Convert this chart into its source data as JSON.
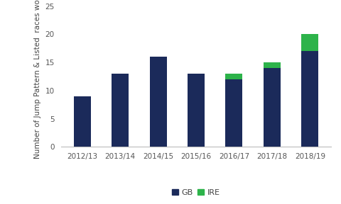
{
  "categories": [
    "2012/13",
    "2013/14",
    "2014/15",
    "2015/16",
    "2016/17",
    "2017/18",
    "2018/19"
  ],
  "gb_values": [
    9,
    13,
    16,
    13,
    12,
    14,
    17
  ],
  "ire_values": [
    0,
    0,
    0,
    0,
    1,
    1,
    3
  ],
  "gb_color": "#1b2a5a",
  "ire_color": "#2db34a",
  "ylabel": "Number of Jump Pattern & Listed  races won",
  "ylim": [
    0,
    25
  ],
  "yticks": [
    0,
    5,
    10,
    15,
    20,
    25
  ],
  "legend_gb": "GB",
  "legend_ire": "IRE",
  "background_color": "#ffffff",
  "bar_width": 0.45,
  "ylabel_fontsize": 7.5,
  "tick_fontsize": 7.5,
  "legend_fontsize": 8
}
